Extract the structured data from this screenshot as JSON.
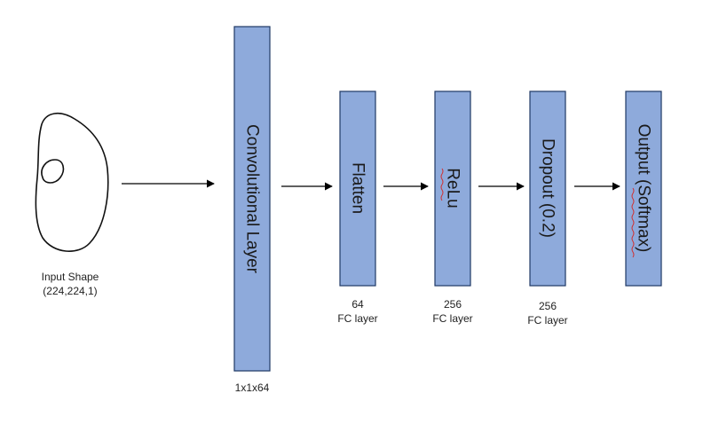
{
  "input": {
    "caption_line1": "Input Shape",
    "caption_line2": "(224,224,1)"
  },
  "blocks": {
    "conv": {
      "label": "Convolutional Layer",
      "caption": "1x1x64"
    },
    "flatten": {
      "label": "Flatten",
      "caption_line1": "64",
      "caption_line2": "FC layer"
    },
    "relu": {
      "label": "ReLu",
      "caption_line1": "256",
      "caption_line2": "FC layer"
    },
    "dropout": {
      "label": "Dropout (0.2)",
      "caption_line1": "256",
      "caption_line2": "FC layer"
    },
    "output": {
      "label": "Output (Softmax)"
    }
  },
  "colors": {
    "block_fill": "#8eaadb",
    "block_border": "#1f3864",
    "arrow": "#000000"
  }
}
